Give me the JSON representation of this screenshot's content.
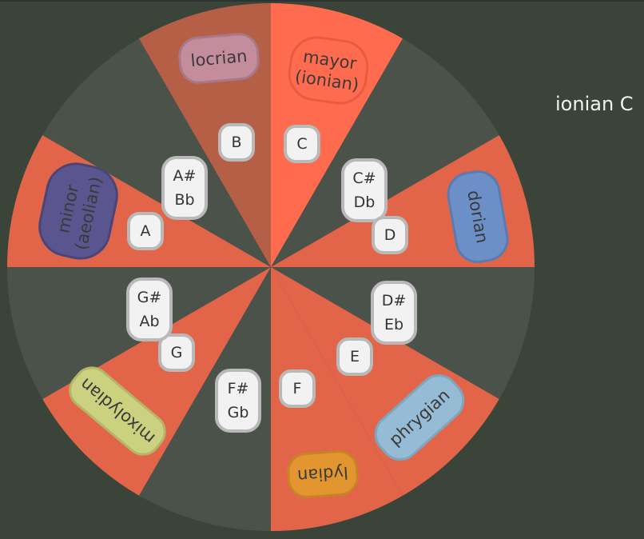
{
  "title": "ionian C",
  "colors": {
    "background": "#3a4438",
    "scale_segment": "#e2654a",
    "non_scale_segment": "#4a5249",
    "root_segment": "#ff6b4e",
    "seventh_segment": "#b55f47",
    "note_button_fill": "#f2f2f2",
    "note_button_border": "#b9b9b9"
  },
  "segments": [
    {
      "note": "C",
      "in_scale": true,
      "root": true
    },
    {
      "note": "C#",
      "in_scale": false
    },
    {
      "note": "D",
      "in_scale": true
    },
    {
      "note": "D#",
      "in_scale": false
    },
    {
      "note": "E",
      "in_scale": true
    },
    {
      "note": "F",
      "in_scale": true
    },
    {
      "note": "F#",
      "in_scale": false
    },
    {
      "note": "G",
      "in_scale": true
    },
    {
      "note": "G#",
      "in_scale": false
    },
    {
      "note": "A",
      "in_scale": true
    },
    {
      "note": "A#",
      "in_scale": false
    },
    {
      "note": "B",
      "in_scale": true,
      "dim": true
    }
  ],
  "notes": [
    {
      "id": "c",
      "lines": [
        "C"
      ]
    },
    {
      "id": "c-sharp",
      "lines": [
        "C#",
        "Db"
      ]
    },
    {
      "id": "d",
      "lines": [
        "D"
      ]
    },
    {
      "id": "d-sharp",
      "lines": [
        "D#",
        "Eb"
      ]
    },
    {
      "id": "e",
      "lines": [
        "E"
      ]
    },
    {
      "id": "f",
      "lines": [
        "F"
      ]
    },
    {
      "id": "f-sharp",
      "lines": [
        "F#",
        "Gb"
      ]
    },
    {
      "id": "g",
      "lines": [
        "G"
      ]
    },
    {
      "id": "g-sharp",
      "lines": [
        "G#",
        "Ab"
      ]
    },
    {
      "id": "a",
      "lines": [
        "A"
      ]
    },
    {
      "id": "a-sharp",
      "lines": [
        "A#",
        "Bb"
      ]
    },
    {
      "id": "b",
      "lines": [
        "B"
      ]
    }
  ],
  "modes": [
    {
      "id": "ionian",
      "lines": [
        "mayor",
        "(ionian)"
      ],
      "color": "#ff6b4e",
      "stroke": "#e85a42"
    },
    {
      "id": "dorian",
      "lines": [
        "dorian"
      ],
      "color": "#6d8fc8",
      "stroke": "#5a7bb0"
    },
    {
      "id": "phrygian",
      "lines": [
        "phrygian"
      ],
      "color": "#95bcd4",
      "stroke": "#7ea6bf"
    },
    {
      "id": "lydian",
      "lines": [
        "lydian"
      ],
      "color": "#e3952f",
      "stroke": "#c98224"
    },
    {
      "id": "mixolydian",
      "lines": [
        "mixolydian"
      ],
      "color": "#ccd180",
      "stroke": "#b3b868"
    },
    {
      "id": "aeolian",
      "lines": [
        "minor",
        "(aeolian)"
      ],
      "color": "#5a558e",
      "stroke": "#4a4578"
    },
    {
      "id": "locrian",
      "lines": [
        "locrian"
      ],
      "color": "#c48d9d",
      "stroke": "#a97886"
    }
  ]
}
